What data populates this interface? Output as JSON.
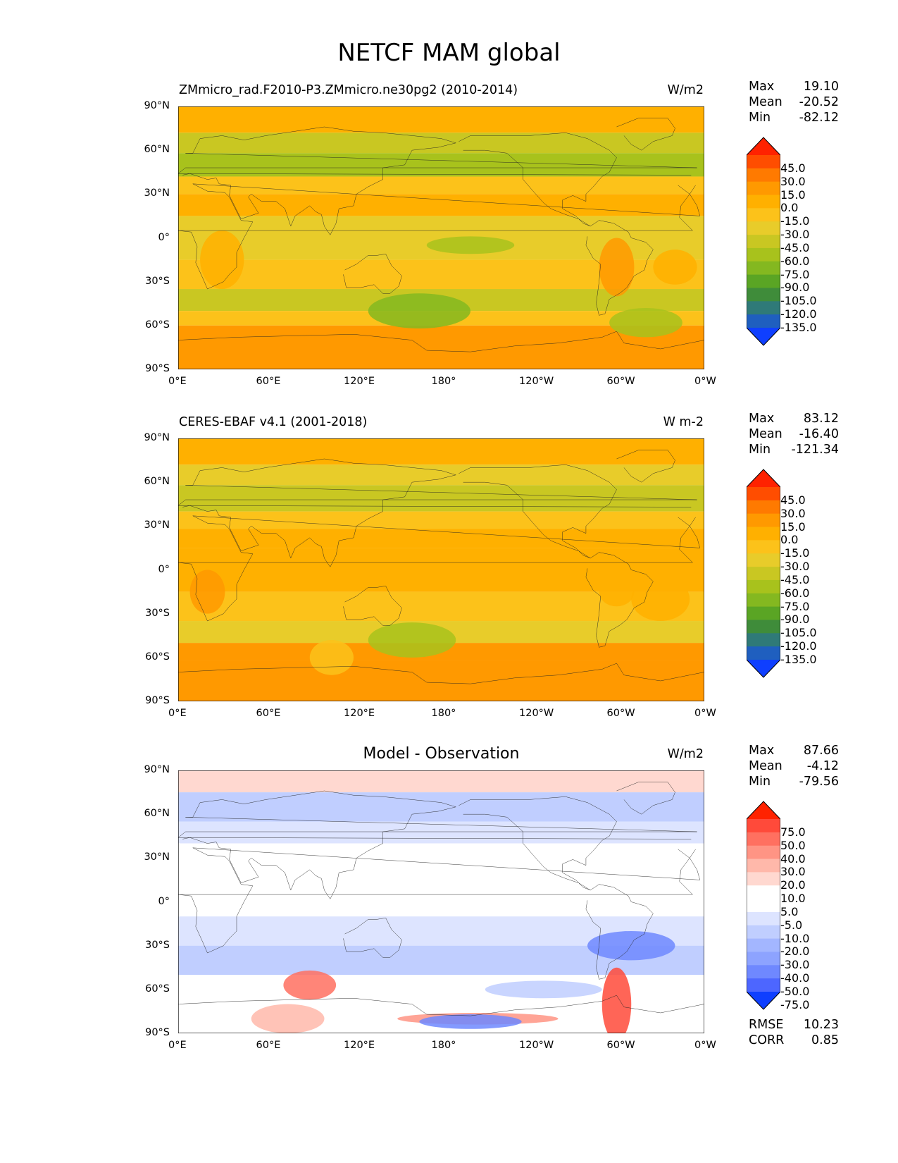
{
  "title": "NETCF MAM global",
  "lat_ticks": [
    "90°N",
    "60°N",
    "30°N",
    "0°",
    "30°S",
    "60°S",
    "90°S"
  ],
  "lon_ticks": [
    "0°E",
    "60°E",
    "120°E",
    "180°",
    "120°W",
    "60°W",
    "0°W"
  ],
  "colors": {
    "field_levels": [
      "#ff2200",
      "#ff4d00",
      "#ff7a00",
      "#ff9900",
      "#ffb000",
      "#fcc21a",
      "#e8cc2a",
      "#c9c722",
      "#a8c21c",
      "#84b820",
      "#5aa524",
      "#3f8c3a",
      "#2f7a78",
      "#1f5fbf",
      "#0f3fff"
    ],
    "diff_levels": [
      "#ff2200",
      "#ff4a3a",
      "#ff7060",
      "#ff9484",
      "#ffb8aa",
      "#ffd8d0",
      "#ffffff",
      "#ffffff",
      "#dde4ff",
      "#c0ceff",
      "#a3b6ff",
      "#8da3ff",
      "#6f88ff",
      "#4d66ff",
      "#0f3fff"
    ]
  },
  "panels": [
    {
      "title": "ZMmicro_rad.F2010-P3.ZMmicro.ne30pg2 (2010-2014)",
      "units": "W/m2",
      "stats": [
        {
          "label": "Max",
          "value": "19.10"
        },
        {
          "label": "Mean",
          "value": "-20.52"
        },
        {
          "label": "Min",
          "value": "-82.12"
        }
      ],
      "colorbar_labels": [
        "45.0",
        "30.0",
        "15.0",
        "0.0",
        "-15.0",
        "-30.0",
        "-45.0",
        "-60.0",
        "-75.0",
        "-90.0",
        "-105.0",
        "-120.0",
        "-135.0"
      ]
    },
    {
      "title": "CERES-EBAF v4.1 (2001-2018)",
      "units": "W m-2",
      "stats": [
        {
          "label": "Max",
          "value": "83.12"
        },
        {
          "label": "Mean",
          "value": "-16.40"
        },
        {
          "label": "Min",
          "value": "-121.34"
        }
      ],
      "colorbar_labels": [
        "45.0",
        "30.0",
        "15.0",
        "0.0",
        "-15.0",
        "-30.0",
        "-45.0",
        "-60.0",
        "-75.0",
        "-90.0",
        "-105.0",
        "-120.0",
        "-135.0"
      ]
    },
    {
      "title": "Model - Observation",
      "units": "W/m2",
      "stats": [
        {
          "label": "Max",
          "value": "87.66"
        },
        {
          "label": "Mean",
          "value": "-4.12"
        },
        {
          "label": "Min",
          "value": "-79.56"
        }
      ],
      "colorbar_labels": [
        "75.0",
        "50.0",
        "40.0",
        "30.0",
        "20.0",
        "10.0",
        "5.0",
        "-5.0",
        "-10.0",
        "-20.0",
        "-30.0",
        "-40.0",
        "-50.0",
        "-75.0"
      ],
      "extra_stats": [
        {
          "label": "RMSE",
          "value": "10.23"
        },
        {
          "label": "CORR",
          "value": "0.85"
        }
      ]
    }
  ],
  "chart_data": [
    {
      "type": "heatmap",
      "title": "ZMmicro_rad.F2010-P3.ZMmicro.ne30pg2 (2010-2014)",
      "units": "W/m2",
      "xlim": [
        0,
        360
      ],
      "ylim": [
        -90,
        90
      ],
      "x_ticks": [
        "0°E",
        "60°E",
        "120°E",
        "180°",
        "120°W",
        "60°W",
        "0°W"
      ],
      "y_ticks": [
        "90°N",
        "60°N",
        "30°N",
        "0°",
        "30°S",
        "60°S",
        "90°S"
      ],
      "stats": {
        "max": 19.1,
        "mean": -20.52,
        "min": -82.12
      },
      "levels": [
        45,
        30,
        15,
        0,
        -15,
        -30,
        -45,
        -60,
        -75,
        -90,
        -105,
        -120,
        -135
      ]
    },
    {
      "type": "heatmap",
      "title": "CERES-EBAF v4.1 (2001-2018)",
      "units": "W m-2",
      "xlim": [
        0,
        360
      ],
      "ylim": [
        -90,
        90
      ],
      "x_ticks": [
        "0°E",
        "60°E",
        "120°E",
        "180°",
        "120°W",
        "60°W",
        "0°W"
      ],
      "y_ticks": [
        "90°N",
        "60°N",
        "30°N",
        "0°",
        "30°S",
        "60°S",
        "90°S"
      ],
      "stats": {
        "max": 83.12,
        "mean": -16.4,
        "min": -121.34
      },
      "levels": [
        45,
        30,
        15,
        0,
        -15,
        -30,
        -45,
        -60,
        -75,
        -90,
        -105,
        -120,
        -135
      ]
    },
    {
      "type": "heatmap",
      "title": "Model - Observation",
      "units": "W/m2",
      "xlim": [
        0,
        360
      ],
      "ylim": [
        -90,
        90
      ],
      "x_ticks": [
        "0°E",
        "60°E",
        "120°E",
        "180°",
        "120°W",
        "60°W",
        "0°W"
      ],
      "y_ticks": [
        "90°N",
        "60°N",
        "30°N",
        "0°",
        "30°S",
        "60°S",
        "90°S"
      ],
      "stats": {
        "max": 87.66,
        "mean": -4.12,
        "min": -79.56,
        "rmse": 10.23,
        "corr": 0.85
      },
      "levels": [
        75,
        50,
        40,
        30,
        20,
        10,
        5,
        -5,
        -10,
        -20,
        -30,
        -40,
        -50,
        -75
      ]
    }
  ]
}
